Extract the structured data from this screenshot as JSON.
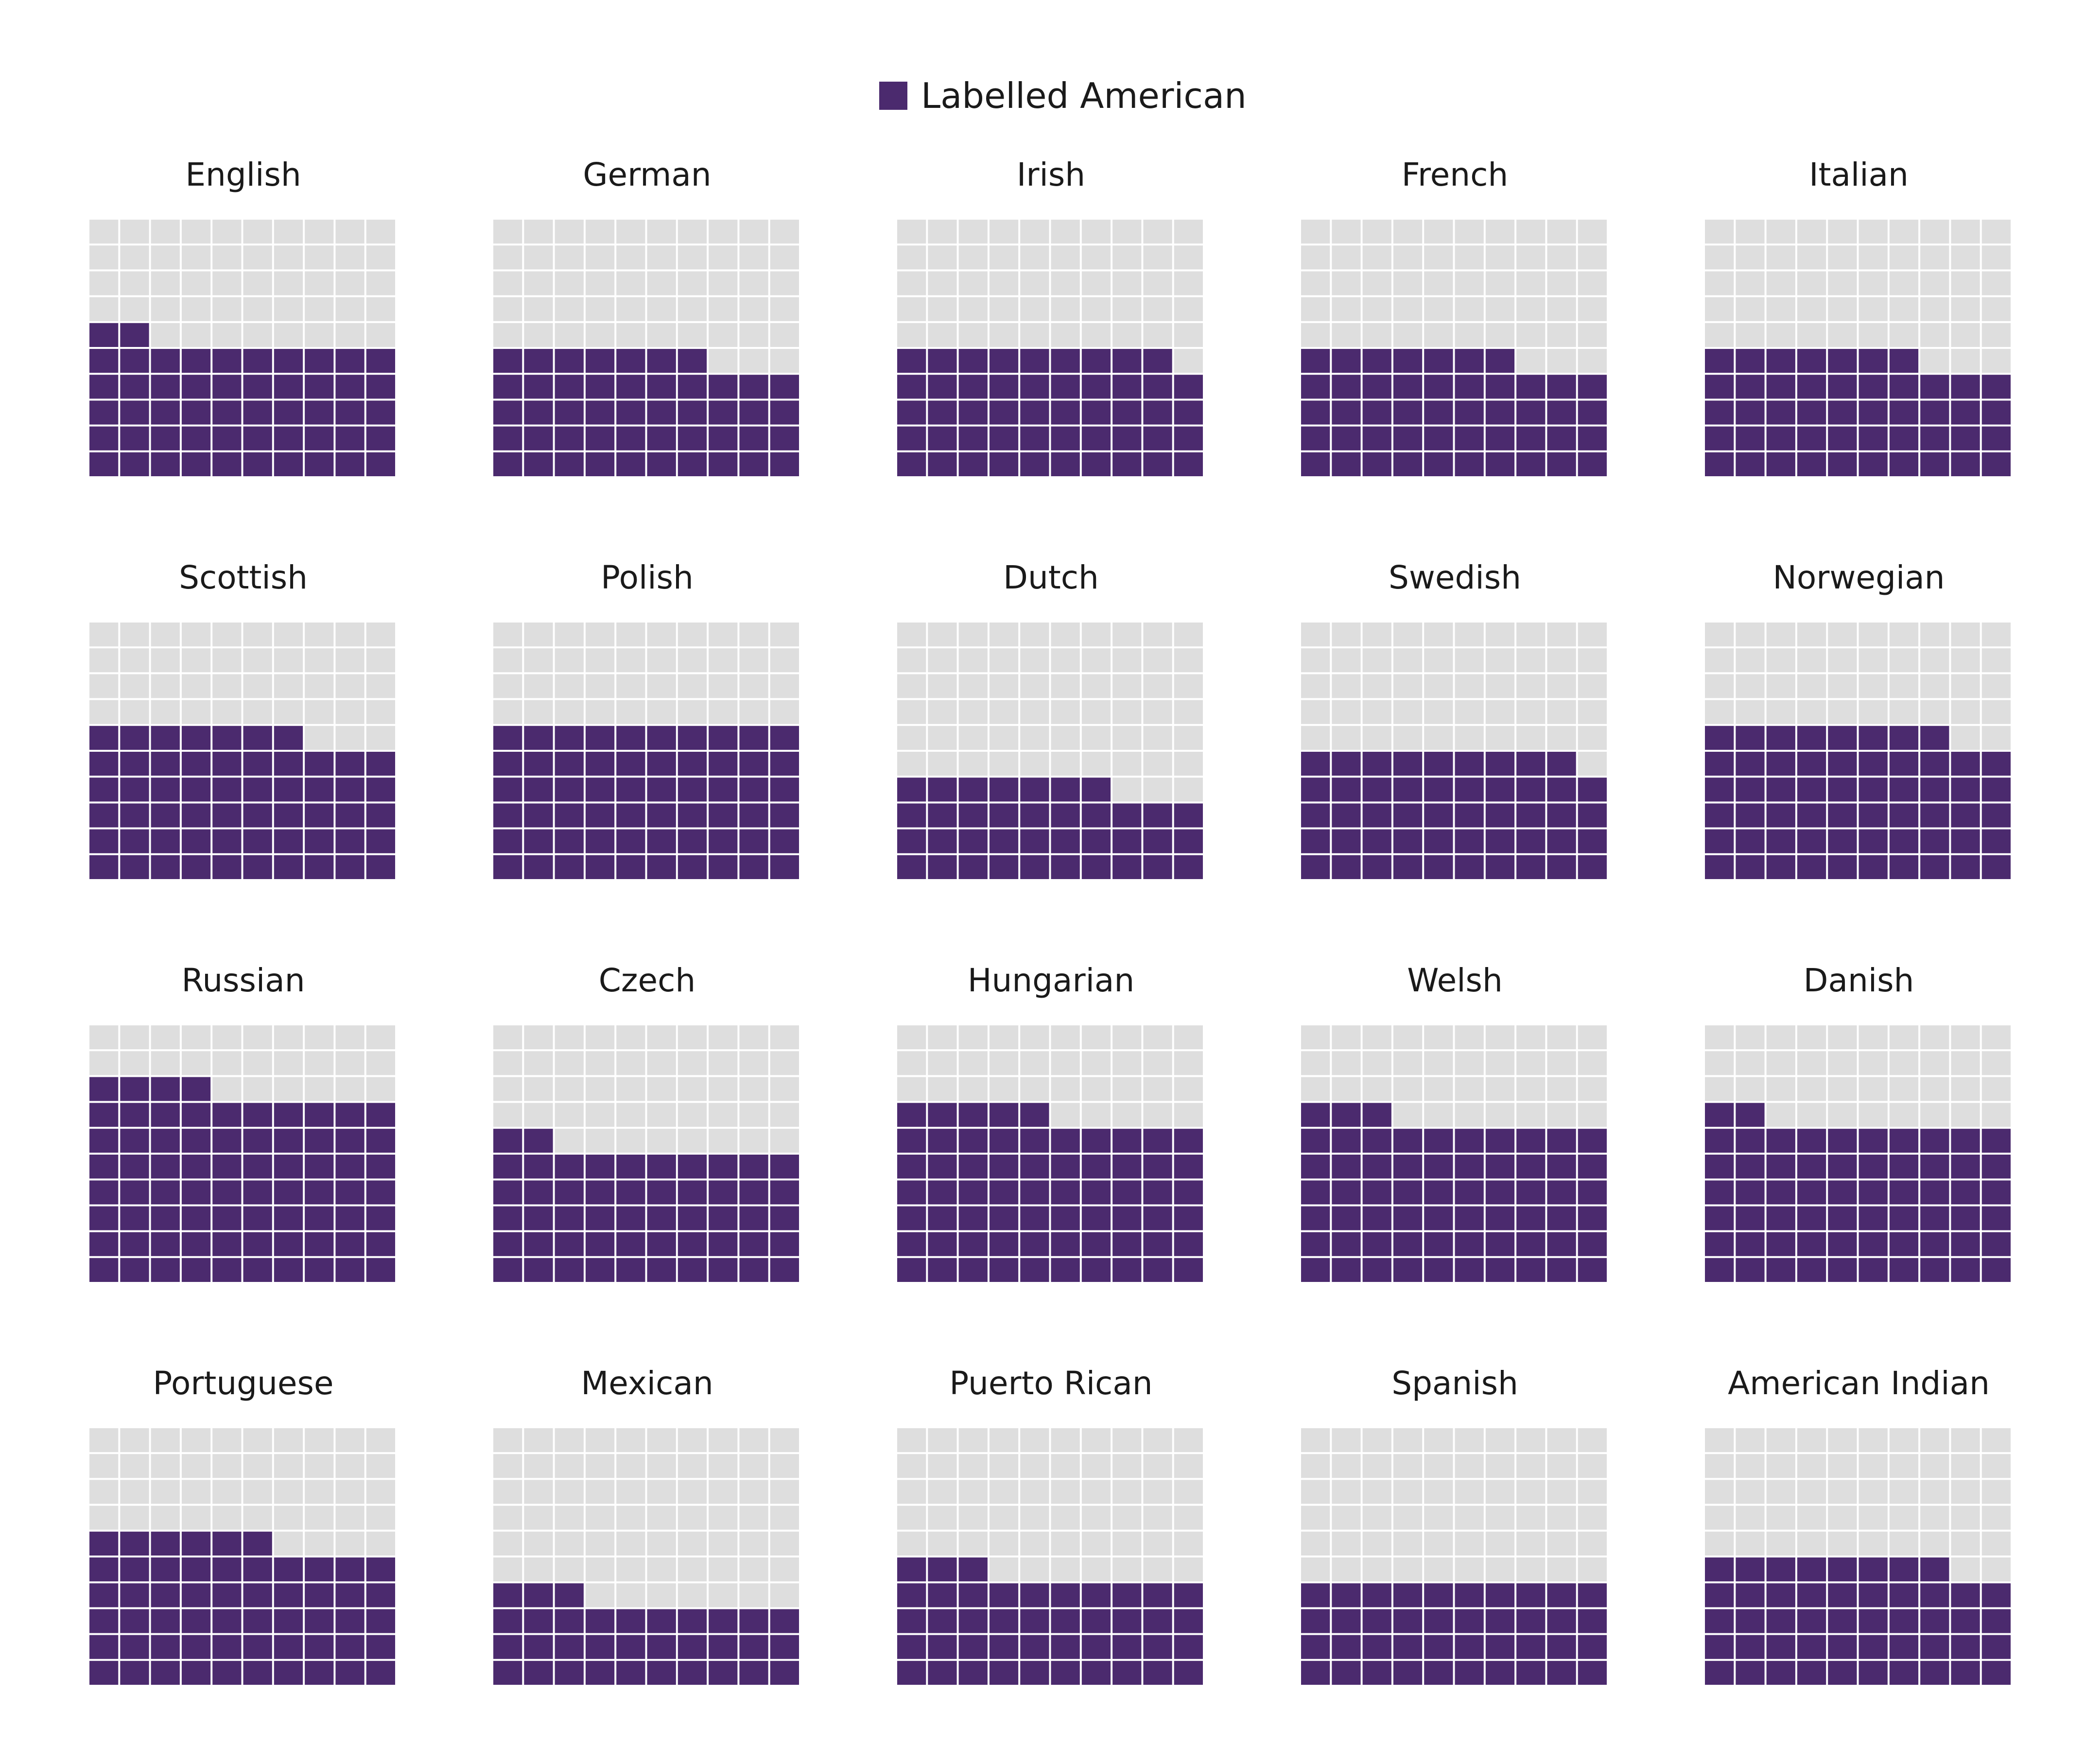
{
  "colors": {
    "filled": "#4b2a6e",
    "empty": "#dedede",
    "gridline": "#ffffff"
  },
  "chart_data": {
    "type": "waffle",
    "grid": {
      "columns": 10,
      "rows": 10,
      "cells_per_panel": 100
    },
    "legend": {
      "label": "Labelled American",
      "placement": "top-center"
    },
    "panels": [
      {
        "name": "English",
        "filled_cells": 52
      },
      {
        "name": "German",
        "filled_cells": 47
      },
      {
        "name": "Irish",
        "filled_cells": 49
      },
      {
        "name": "French",
        "filled_cells": 47
      },
      {
        "name": "Italian",
        "filled_cells": 47
      },
      {
        "name": "Scottish",
        "filled_cells": 57
      },
      {
        "name": "Polish",
        "filled_cells": 60
      },
      {
        "name": "Dutch",
        "filled_cells": 37
      },
      {
        "name": "Swedish",
        "filled_cells": 49
      },
      {
        "name": "Norwegian",
        "filled_cells": 58
      },
      {
        "name": "Russian",
        "filled_cells": 74
      },
      {
        "name": "Czech",
        "filled_cells": 52
      },
      {
        "name": "Hungarian",
        "filled_cells": 65
      },
      {
        "name": "Welsh",
        "filled_cells": 63
      },
      {
        "name": "Danish",
        "filled_cells": 62
      },
      {
        "name": "Portuguese",
        "filled_cells": 56
      },
      {
        "name": "Mexican",
        "filled_cells": 33
      },
      {
        "name": "Puerto Rican",
        "filled_cells": 43
      },
      {
        "name": "Spanish",
        "filled_cells": 40
      },
      {
        "name": "American Indian",
        "filled_cells": 48
      }
    ]
  }
}
